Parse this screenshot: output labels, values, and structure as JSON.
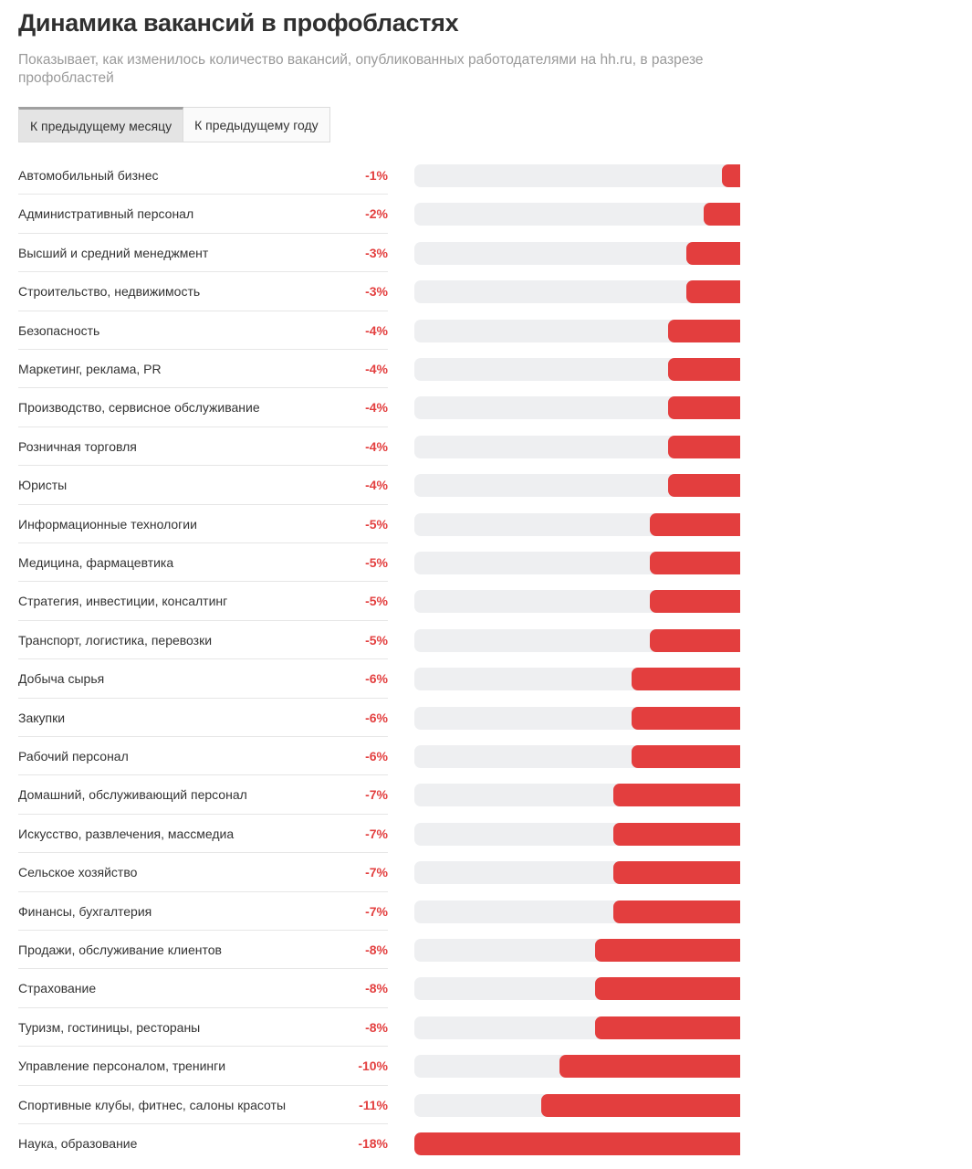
{
  "header": {
    "title": "Динамика вакансий в профобластях",
    "subtitle": "Показывает, как изменилось количество вакансий, опубликованных работодателями на hh.ru, в разрезе профобластей"
  },
  "tabs": [
    {
      "label": "К предыдущему месяцу",
      "active": true
    },
    {
      "label": "К предыдущему году",
      "active": false
    }
  ],
  "colors": {
    "bar": "#e33e3e",
    "track": "#eeeff1",
    "value_text": "#e34040"
  },
  "chart_data": {
    "type": "bar",
    "orientation": "horizontal",
    "title": "Динамика вакансий в профобластях",
    "xlim": [
      -18,
      0
    ],
    "categories": [
      "Автомобильный бизнес",
      "Административный персонал",
      "Высший и средний менеджмент",
      "Строительство, недвижимость",
      "Безопасность",
      "Маркетинг, реклама, PR",
      "Производство, сервисное обслуживание",
      "Розничная торговля",
      "Юристы",
      "Информационные технологии",
      "Медицина, фармацевтика",
      "Стратегия, инвестиции, консалтинг",
      "Транспорт, логистика, перевозки",
      "Добыча сырья",
      "Закупки",
      "Рабочий персонал",
      "Домашний, обслуживающий персонал",
      "Искусство, развлечения, массмедиа",
      "Сельское хозяйство",
      "Финансы, бухгалтерия",
      "Продажи, обслуживание клиентов",
      "Страхование",
      "Туризм, гостиницы, рестораны",
      "Управление персоналом, тренинги",
      "Спортивные клубы, фитнес, салоны красоты",
      "Наука, образование"
    ],
    "values": [
      -1,
      -2,
      -3,
      -3,
      -4,
      -4,
      -4,
      -4,
      -4,
      -5,
      -5,
      -5,
      -5,
      -6,
      -6,
      -6,
      -7,
      -7,
      -7,
      -7,
      -8,
      -8,
      -8,
      -10,
      -11,
      -18
    ],
    "value_labels": [
      "-1%",
      "-2%",
      "-3%",
      "-3%",
      "-4%",
      "-4%",
      "-4%",
      "-4%",
      "-4%",
      "-5%",
      "-5%",
      "-5%",
      "-5%",
      "-6%",
      "-6%",
      "-6%",
      "-7%",
      "-7%",
      "-7%",
      "-7%",
      "-8%",
      "-8%",
      "-8%",
      "-10%",
      "-11%",
      "-18%"
    ]
  }
}
